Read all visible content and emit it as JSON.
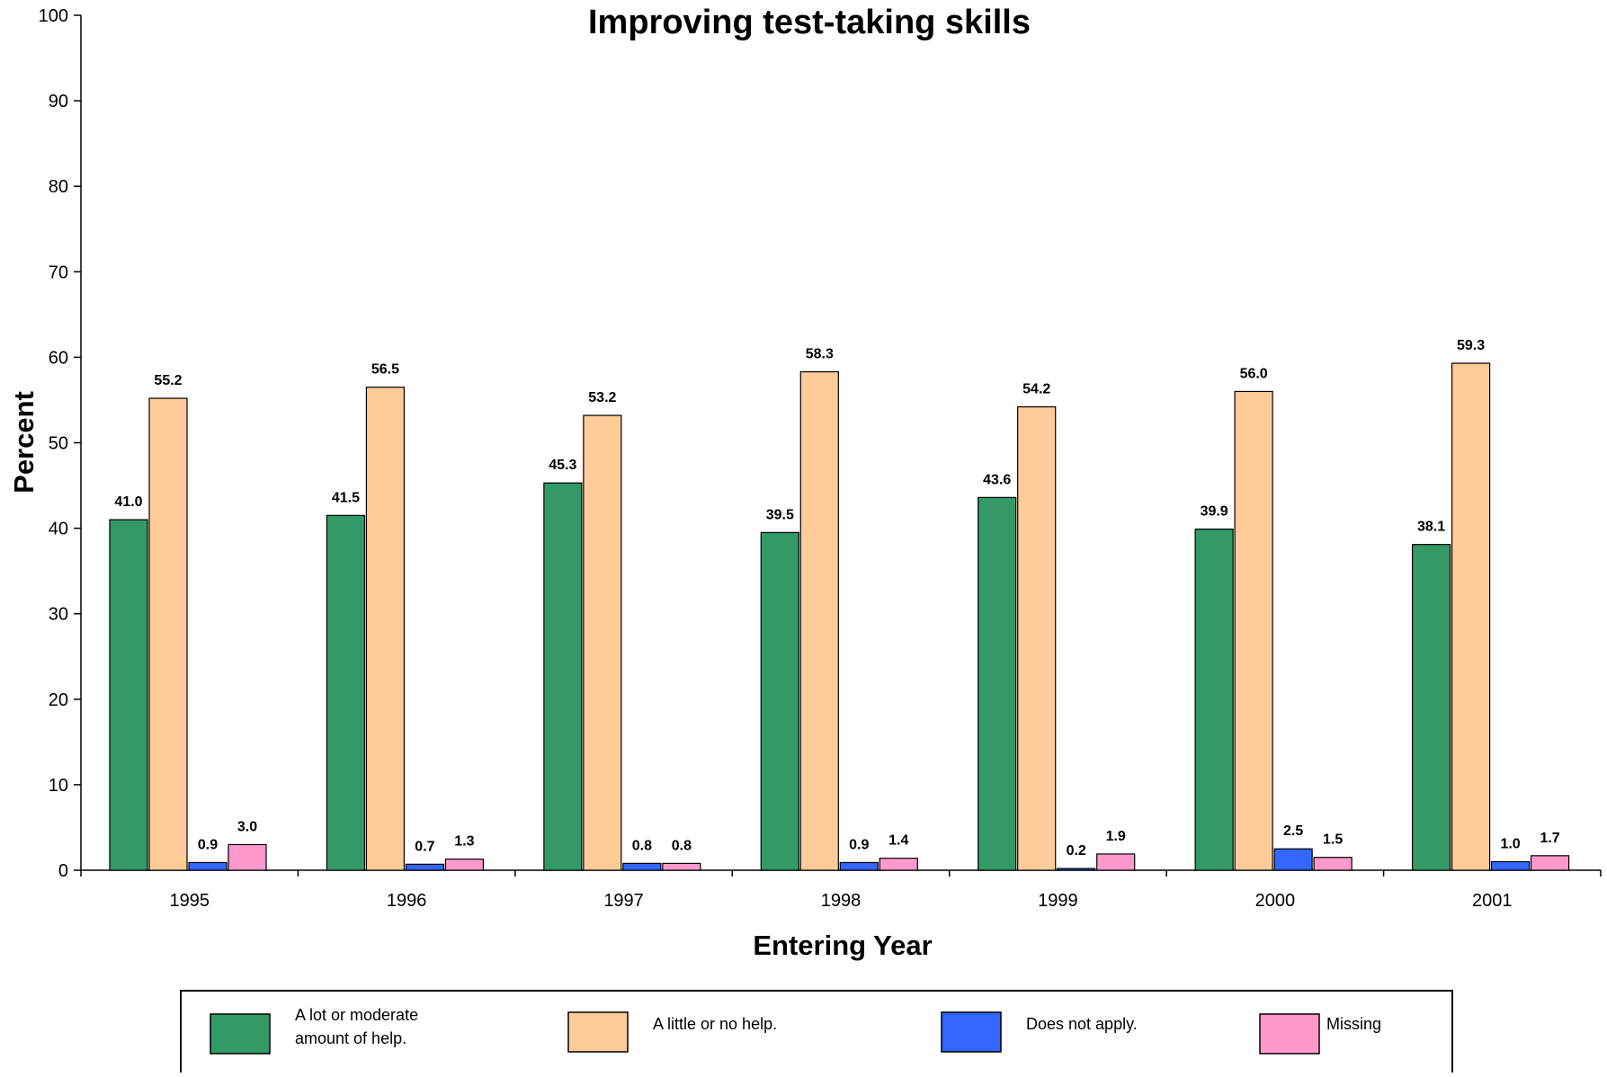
{
  "chart_data": {
    "type": "bar",
    "title": "Improving test-taking skills",
    "xlabel": "Entering Year",
    "ylabel": "Percent",
    "ylim": [
      0,
      100
    ],
    "yticks": [
      0,
      10,
      20,
      30,
      40,
      50,
      60,
      70,
      80,
      90,
      100
    ],
    "grid": false,
    "legend_position": "bottom",
    "categories": [
      "1995",
      "1996",
      "1997",
      "1998",
      "1999",
      "2000",
      "2001"
    ],
    "series": [
      {
        "name": "A lot or moderate amount of help.",
        "legend_lines": [
          "A lot or moderate",
          "amount of help."
        ],
        "color": "#339966",
        "values": [
          41.0,
          41.5,
          45.3,
          39.5,
          43.6,
          39.9,
          38.1
        ],
        "labels": [
          "41.0",
          "41.5",
          "45.3",
          "39.5",
          "43.6",
          "39.9",
          "38.1"
        ]
      },
      {
        "name": "A little or no help.",
        "legend_lines": [
          "A little or no help."
        ],
        "color": "#FFCC99",
        "values": [
          55.2,
          56.5,
          53.2,
          58.3,
          54.2,
          56.0,
          59.3
        ],
        "labels": [
          "55.2",
          "56.5",
          "53.2",
          "58.3",
          "54.2",
          "56.0",
          "59.3"
        ]
      },
      {
        "name": "Does not apply.",
        "legend_lines": [
          "Does not apply."
        ],
        "color": "#3366FF",
        "values": [
          0.9,
          0.7,
          0.8,
          0.9,
          0.2,
          2.5,
          1.0
        ],
        "labels": [
          "0.9",
          "0.7",
          "0.8",
          "0.9",
          "0.2",
          "2.5",
          "1.0"
        ]
      },
      {
        "name": "Missing",
        "legend_lines": [
          "Missing"
        ],
        "color": "#FF99CC",
        "values": [
          3.0,
          1.3,
          0.8,
          1.4,
          1.9,
          1.5,
          1.7
        ],
        "labels": [
          "3.0",
          "1.3",
          "0.8",
          "1.4",
          "1.9",
          "1.5",
          "1.7"
        ]
      }
    ]
  }
}
